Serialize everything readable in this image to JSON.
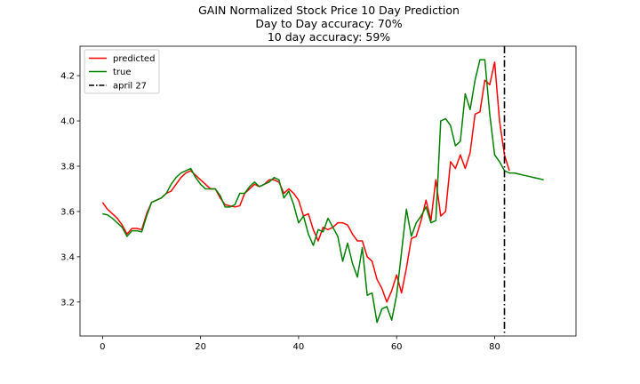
{
  "chart_data": {
    "type": "line",
    "title": "GAIN Normalized Stock Price 10 Day Prediction",
    "subtitle_1": "Day to Day accuracy: 70%",
    "subtitle_2": "10 day accuracy: 59%",
    "xlabel": "",
    "ylabel": "",
    "xlim": [
      -4.6,
      96.6
    ],
    "ylim": [
      3.05,
      4.33
    ],
    "xticks": [
      0,
      20,
      40,
      60,
      80
    ],
    "yticks": [
      3.2,
      3.4,
      3.6,
      3.8,
      4.0,
      4.2
    ],
    "xtick_labels": [
      "0",
      "20",
      "40",
      "60",
      "80"
    ],
    "ytick_labels": [
      "3.2",
      "3.4",
      "3.6",
      "3.8",
      "4.0",
      "4.2"
    ],
    "grid": false,
    "legend_position": "top-left",
    "vline": {
      "x": 82,
      "label": "april 27",
      "color": "#000000",
      "style": "dashdot"
    },
    "series": [
      {
        "name": "predicted",
        "color": "#ff0000",
        "x_start": 0,
        "values": [
          3.64,
          3.61,
          3.59,
          3.57,
          3.54,
          3.5,
          3.525,
          3.525,
          3.52,
          3.59,
          3.64,
          3.65,
          3.66,
          3.68,
          3.69,
          3.72,
          3.75,
          3.77,
          3.78,
          3.76,
          3.74,
          3.72,
          3.7,
          3.7,
          3.66,
          3.63,
          3.625,
          3.62,
          3.625,
          3.68,
          3.7,
          3.72,
          3.71,
          3.72,
          3.74,
          3.74,
          3.73,
          3.68,
          3.7,
          3.68,
          3.65,
          3.58,
          3.59,
          3.52,
          3.47,
          3.53,
          3.52,
          3.53,
          3.55,
          3.55,
          3.54,
          3.5,
          3.47,
          3.47,
          3.4,
          3.38,
          3.3,
          3.26,
          3.2,
          3.25,
          3.32,
          3.24,
          3.35,
          3.48,
          3.49,
          3.56,
          3.65,
          3.56,
          3.74,
          3.58,
          3.6,
          3.82,
          3.79,
          3.85,
          3.79,
          3.86,
          4.03,
          4.04,
          4.18,
          4.16,
          4.26,
          4.0,
          3.85,
          3.78
        ]
      },
      {
        "name": "true",
        "color": "#008000",
        "x_start": 0,
        "values": [
          3.59,
          3.585,
          3.57,
          3.55,
          3.53,
          3.49,
          3.515,
          3.515,
          3.51,
          3.58,
          3.64,
          3.65,
          3.66,
          3.68,
          3.72,
          3.75,
          3.77,
          3.78,
          3.79,
          3.75,
          3.72,
          3.7,
          3.7,
          3.7,
          3.67,
          3.62,
          3.62,
          3.63,
          3.68,
          3.68,
          3.71,
          3.73,
          3.71,
          3.72,
          3.73,
          3.75,
          3.74,
          3.66,
          3.69,
          3.63,
          3.55,
          3.58,
          3.5,
          3.45,
          3.52,
          3.51,
          3.57,
          3.53,
          3.49,
          3.38,
          3.46,
          3.37,
          3.31,
          3.44,
          3.23,
          3.24,
          3.11,
          3.17,
          3.18,
          3.12,
          3.23,
          3.42,
          3.61,
          3.49,
          3.55,
          3.58,
          3.62,
          3.55,
          3.56,
          4.0,
          4.01,
          3.98,
          3.89,
          3.91,
          4.12,
          4.05,
          4.18,
          4.27,
          4.27,
          4.03,
          3.85,
          3.82,
          3.78,
          3.77,
          3.77,
          3.765,
          3.76,
          3.755,
          3.75,
          3.745,
          3.74
        ]
      }
    ]
  }
}
